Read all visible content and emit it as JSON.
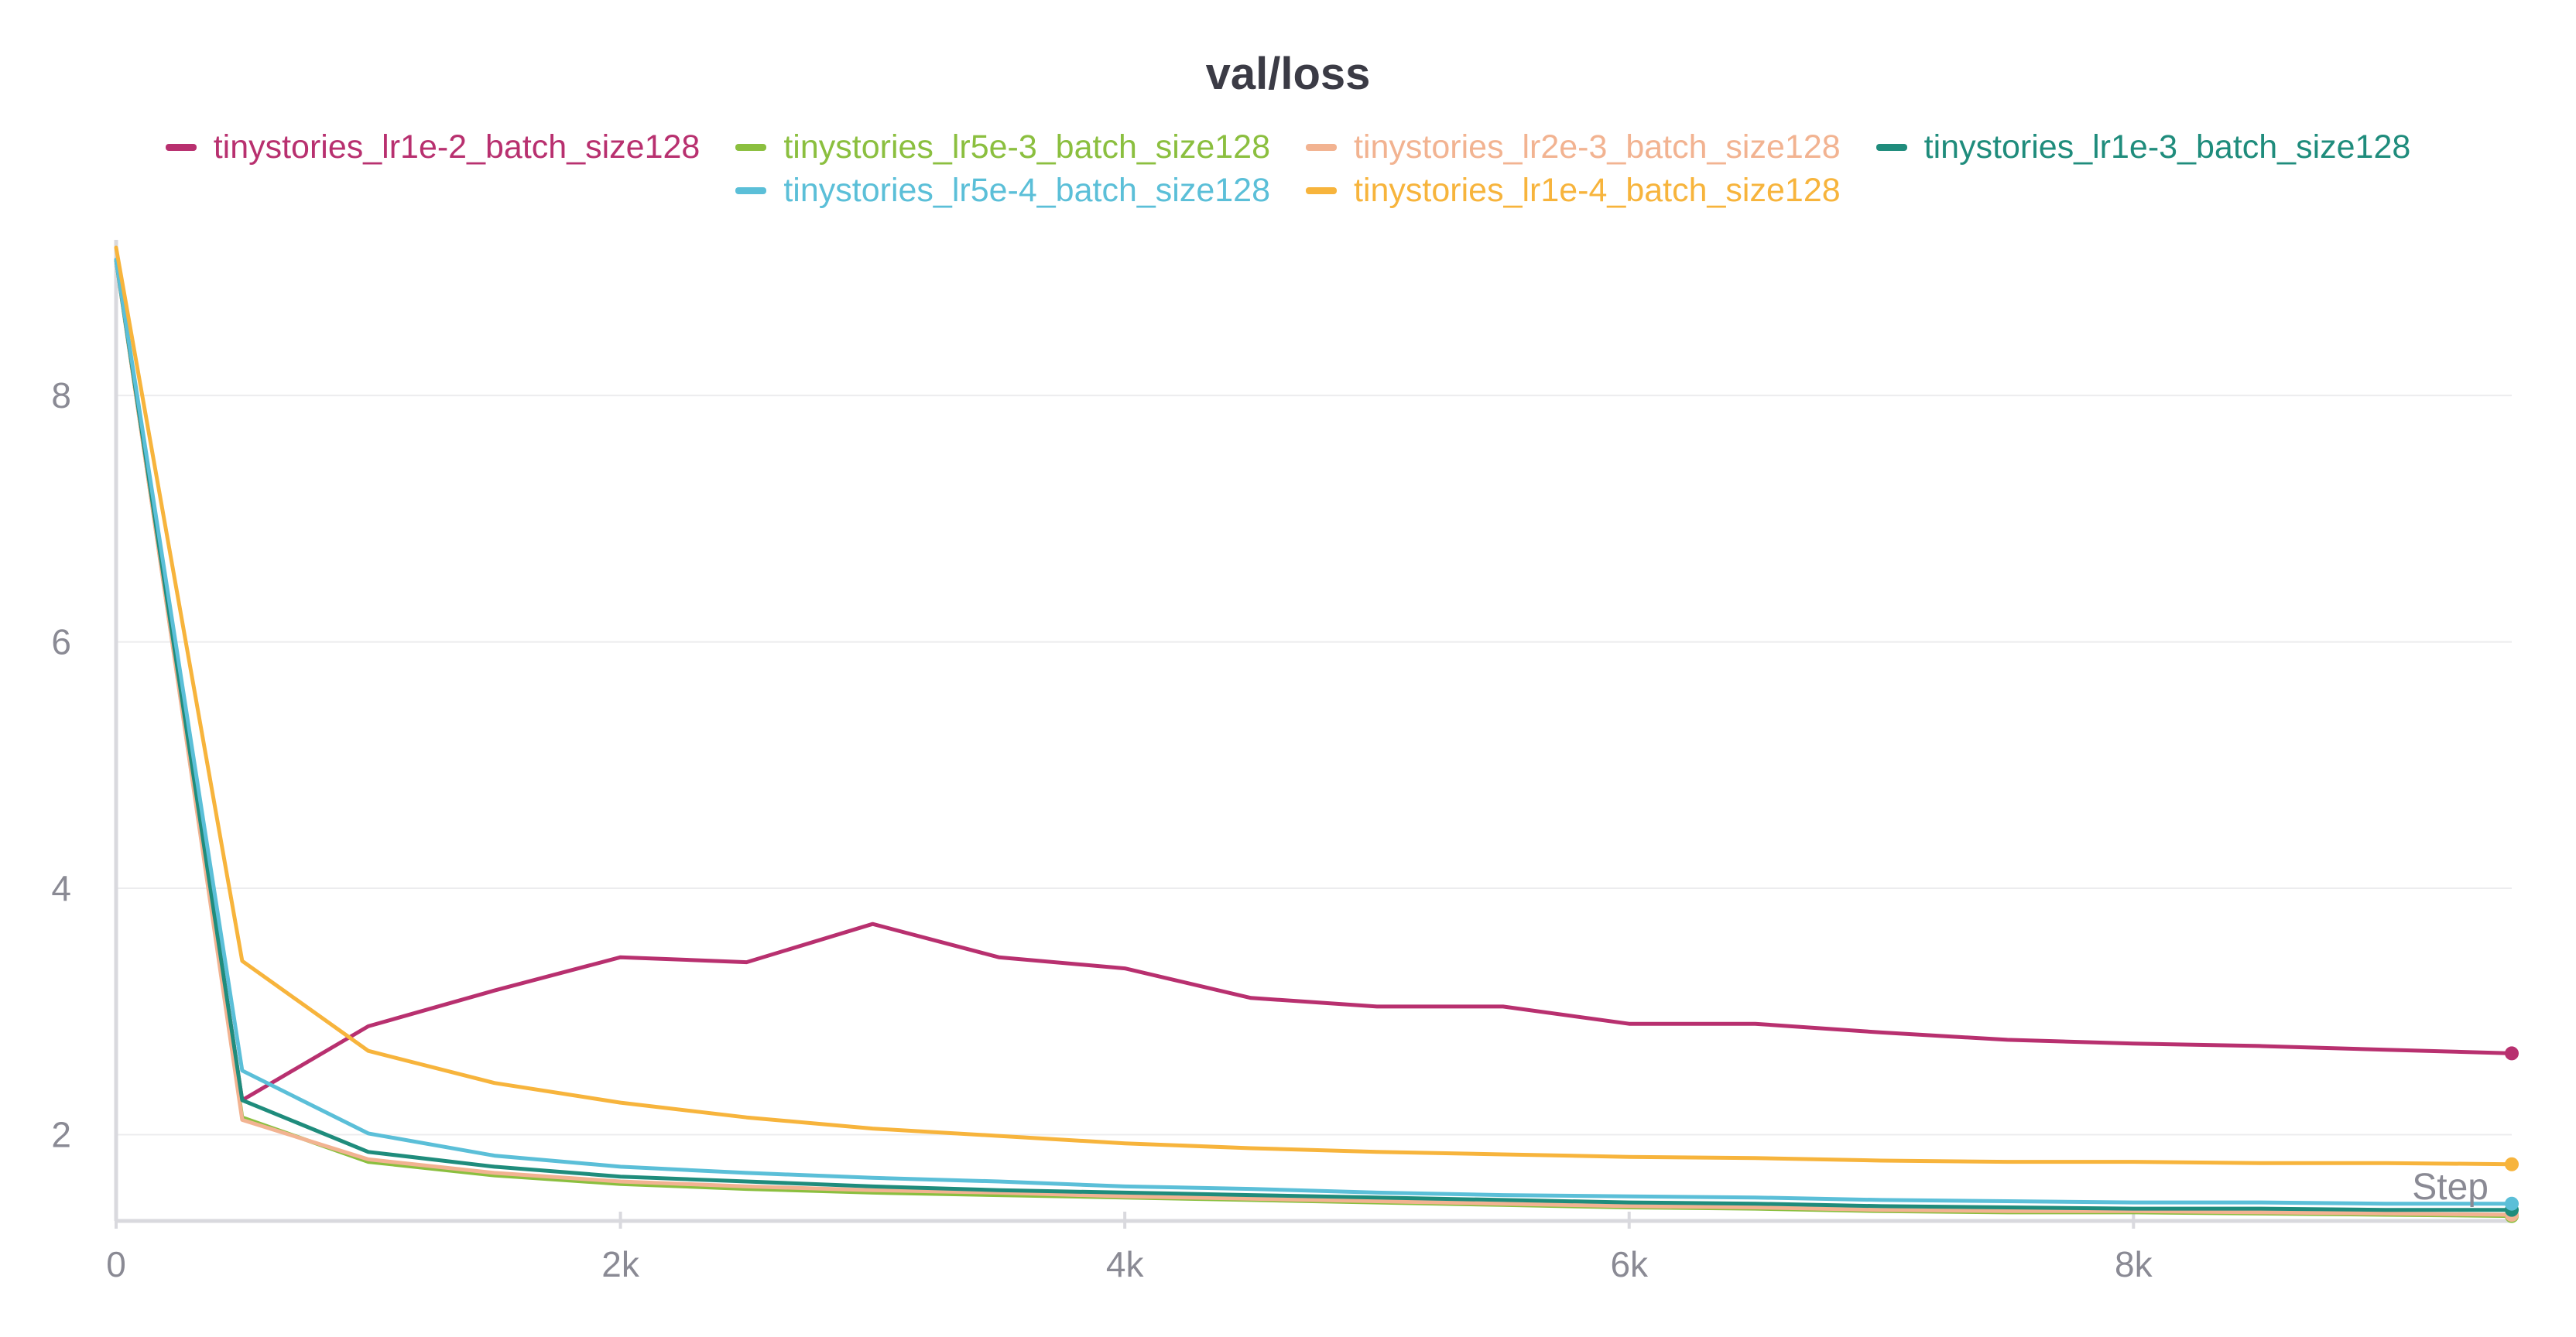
{
  "chart_data": {
    "type": "line",
    "title": "val/loss",
    "xlabel": "Step",
    "ylabel": "",
    "xlim": [
      0,
      9500
    ],
    "ylim": [
      1.3,
      9.2
    ],
    "x_ticks": [
      0,
      2000,
      4000,
      6000,
      8000
    ],
    "x_tick_labels": [
      "0",
      "2k",
      "4k",
      "6k",
      "8k"
    ],
    "y_ticks": [
      2,
      4,
      6,
      8
    ],
    "y_tick_labels": [
      "2",
      "4",
      "6",
      "8"
    ],
    "grid": true,
    "legend_position": "top",
    "series": [
      {
        "name": "tinystories_lr1e-2_batch_size128",
        "color": "#b8306f",
        "x": [
          0,
          500,
          1000,
          1500,
          2000,
          2500,
          3000,
          3500,
          4000,
          4500,
          5000,
          5500,
          6000,
          6500,
          7000,
          7500,
          8000,
          8500,
          9000,
          9500
        ],
        "y": [
          9.1,
          2.28,
          2.88,
          3.17,
          3.44,
          3.4,
          3.71,
          3.44,
          3.35,
          3.11,
          3.04,
          3.04,
          2.9,
          2.9,
          2.83,
          2.77,
          2.74,
          2.72,
          2.69,
          2.66
        ]
      },
      {
        "name": "tinystories_lr5e-3_batch_size128",
        "color": "#8bbf3f",
        "x": [
          0,
          500,
          1000,
          1500,
          2000,
          2500,
          3000,
          3500,
          4000,
          4500,
          5000,
          5500,
          6000,
          6500,
          7000,
          7500,
          8000,
          8500,
          9000,
          9500
        ],
        "y": [
          9.1,
          2.14,
          1.78,
          1.67,
          1.6,
          1.56,
          1.53,
          1.51,
          1.49,
          1.47,
          1.45,
          1.43,
          1.41,
          1.4,
          1.38,
          1.37,
          1.37,
          1.36,
          1.35,
          1.34
        ]
      },
      {
        "name": "tinystories_lr2e-3_batch_size128",
        "color": "#f2b391",
        "x": [
          0,
          500,
          1000,
          1500,
          2000,
          2500,
          3000,
          3500,
          4000,
          4500,
          5000,
          5500,
          6000,
          6500,
          7000,
          7500,
          8000,
          8500,
          9000,
          9500
        ],
        "y": [
          9.1,
          2.12,
          1.8,
          1.69,
          1.62,
          1.58,
          1.55,
          1.53,
          1.5,
          1.48,
          1.46,
          1.44,
          1.42,
          1.41,
          1.39,
          1.38,
          1.38,
          1.37,
          1.36,
          1.35
        ]
      },
      {
        "name": "tinystories_lr1e-3_batch_size128",
        "color": "#1f8c7c",
        "x": [
          0,
          500,
          1000,
          1500,
          2000,
          2500,
          3000,
          3500,
          4000,
          4500,
          5000,
          5500,
          6000,
          6500,
          7000,
          7500,
          8000,
          8500,
          9000,
          9500
        ],
        "y": [
          9.1,
          2.28,
          1.86,
          1.74,
          1.66,
          1.62,
          1.58,
          1.55,
          1.53,
          1.51,
          1.49,
          1.47,
          1.45,
          1.44,
          1.42,
          1.41,
          1.4,
          1.4,
          1.39,
          1.39
        ]
      },
      {
        "name": "tinystories_lr5e-4_batch_size128",
        "color": "#5bbfd8",
        "x": [
          0,
          500,
          1000,
          1500,
          2000,
          2500,
          3000,
          3500,
          4000,
          4500,
          5000,
          5500,
          6000,
          6500,
          7000,
          7500,
          8000,
          8500,
          9000,
          9500
        ],
        "y": [
          9.1,
          2.52,
          2.01,
          1.83,
          1.74,
          1.69,
          1.65,
          1.62,
          1.58,
          1.56,
          1.53,
          1.51,
          1.5,
          1.49,
          1.47,
          1.46,
          1.45,
          1.45,
          1.44,
          1.44
        ]
      },
      {
        "name": "tinystories_lr1e-4_batch_size128",
        "color": "#f7b43c",
        "x": [
          0,
          500,
          1000,
          1500,
          2000,
          2500,
          3000,
          3500,
          4000,
          4500,
          5000,
          5500,
          6000,
          6500,
          7000,
          7500,
          8000,
          8500,
          9000,
          9500
        ],
        "y": [
          9.2,
          3.41,
          2.68,
          2.42,
          2.26,
          2.14,
          2.05,
          1.99,
          1.93,
          1.89,
          1.86,
          1.84,
          1.82,
          1.81,
          1.79,
          1.78,
          1.78,
          1.77,
          1.77,
          1.76
        ]
      }
    ]
  }
}
